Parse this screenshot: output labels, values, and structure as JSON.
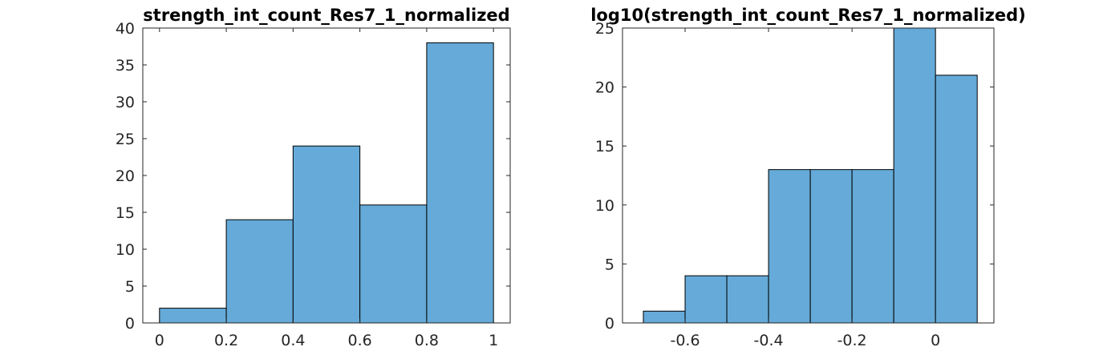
{
  "colors": {
    "bar_fill": "#65aad8",
    "bar_edge": "#000000",
    "axis": "#262626"
  },
  "chart_data": [
    {
      "type": "bar",
      "title": "strength_int_count_Res7_1_normalized",
      "bin_edges": [
        0,
        0.2,
        0.4,
        0.6,
        0.8,
        1.0
      ],
      "values": [
        2,
        14,
        24,
        16,
        38
      ],
      "xlim": [
        -0.05,
        1.05
      ],
      "ylim": [
        0,
        40
      ],
      "xticks": [
        0,
        0.2,
        0.4,
        0.6,
        0.8,
        1
      ],
      "xtick_labels": [
        "0",
        "0.2",
        "0.4",
        "0.6",
        "0.8",
        "1"
      ],
      "yticks": [
        0,
        5,
        10,
        15,
        20,
        25,
        30,
        35,
        40
      ],
      "ytick_labels": [
        "0",
        "5",
        "10",
        "15",
        "20",
        "25",
        "30",
        "35",
        "40"
      ],
      "grid": false,
      "xlabel": "",
      "ylabel": ""
    },
    {
      "type": "bar",
      "title": "log10(strength_int_count_Res7_1_normalized)",
      "bin_edges": [
        -0.7,
        -0.6,
        -0.5,
        -0.4,
        -0.3,
        -0.2,
        -0.1,
        0,
        0.1
      ],
      "values": [
        1,
        4,
        4,
        13,
        13,
        13,
        25,
        21
      ],
      "xlim": [
        -0.75,
        0.14
      ],
      "ylim": [
        0,
        25
      ],
      "xticks": [
        -0.6,
        -0.4,
        -0.2,
        0
      ],
      "xtick_labels": [
        "-0.6",
        "-0.4",
        "-0.2",
        "0"
      ],
      "yticks": [
        0,
        5,
        10,
        15,
        20,
        25
      ],
      "ytick_labels": [
        "0",
        "5",
        "10",
        "15",
        "20",
        "25"
      ],
      "grid": false,
      "xlabel": "",
      "ylabel": ""
    }
  ]
}
